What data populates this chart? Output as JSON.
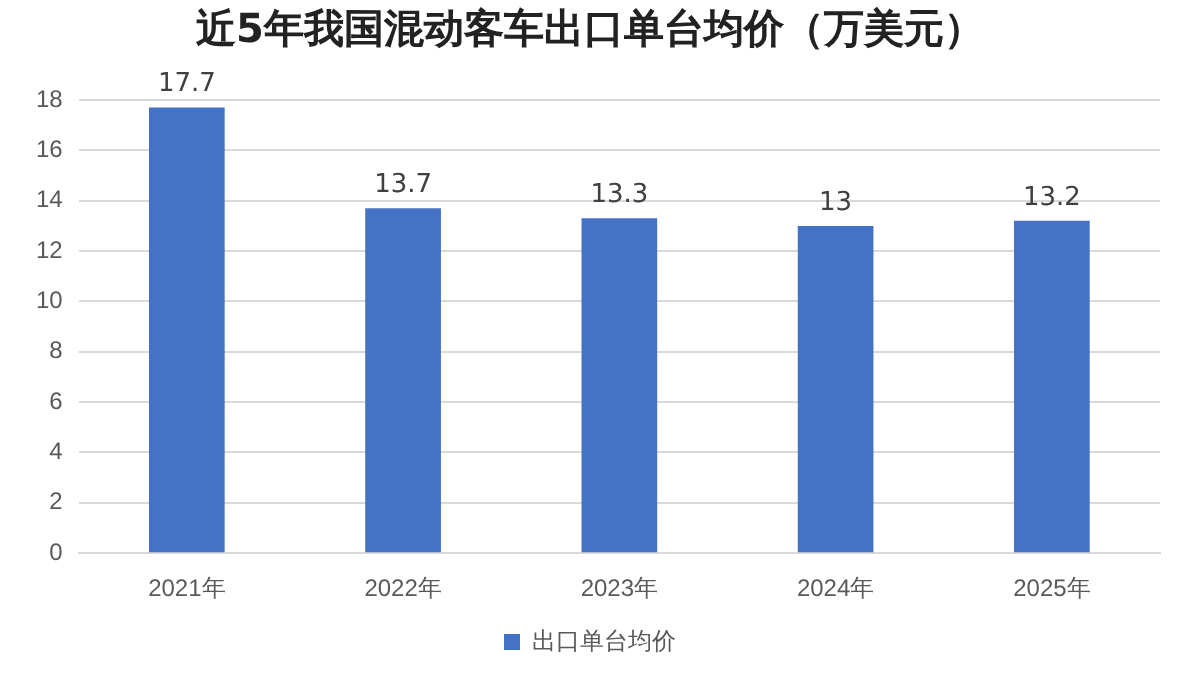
{
  "chart_data": {
    "type": "bar",
    "title": "近5年我国混动客车出口单台均价（万美元）",
    "categories": [
      "2021年",
      "2022年",
      "2023年",
      "2024年",
      "2025年"
    ],
    "series": [
      {
        "name": "出口单台均价",
        "color": "#4472c4",
        "values": [
          17.7,
          13.7,
          13.3,
          13,
          13.2
        ]
      }
    ],
    "ylim": [
      0,
      18
    ],
    "yticks": [
      0,
      2,
      4,
      6,
      8,
      10,
      12,
      14,
      16,
      18
    ],
    "grid": "y",
    "legend": "bottom",
    "data_labels": true
  }
}
